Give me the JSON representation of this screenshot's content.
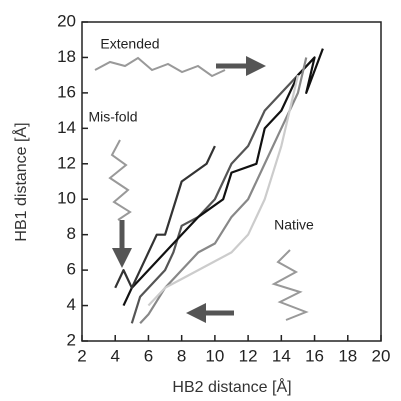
{
  "chart_data": {
    "type": "line",
    "x_label": "HB2 distance [Å]",
    "y_label": "HB1 distance [Å]",
    "annotations": [
      "Extended",
      "Mis-fold",
      "Native"
    ],
    "xlim": [
      2,
      20
    ],
    "ylim": [
      2,
      20
    ],
    "xticks": [
      2,
      4,
      6,
      8,
      10,
      12,
      14,
      16,
      18,
      20
    ],
    "yticks": [
      2,
      4,
      6,
      8,
      10,
      12,
      14,
      16,
      18,
      20
    ],
    "series": [
      {
        "color": "#555555",
        "x": [
          5,
          5.5,
          6,
          7,
          7.5,
          8,
          9,
          10,
          11,
          12,
          12.5,
          13,
          14,
          15,
          16
        ],
        "values": [
          3,
          4.5,
          5,
          6,
          7,
          8.5,
          9,
          10,
          12,
          13,
          14,
          15,
          16,
          17,
          18
        ]
      },
      {
        "color": "#111111",
        "x": [
          4.5,
          5,
          6,
          7,
          8,
          9,
          10.5,
          11,
          12.5,
          13,
          14,
          15,
          16,
          15.5,
          16.5
        ],
        "values": [
          4,
          5,
          6,
          7,
          8,
          9,
          10,
          11.5,
          12,
          14,
          15,
          17,
          18,
          16,
          18.5
        ]
      },
      {
        "color": "#888888",
        "x": [
          5.5,
          6,
          7,
          8,
          9,
          10,
          11,
          12,
          13,
          14,
          15,
          15.5
        ],
        "values": [
          3,
          3.5,
          5,
          6,
          7,
          7.5,
          9,
          10,
          12,
          14,
          16,
          18
        ]
      },
      {
        "color": "#cccccc",
        "x": [
          6,
          7,
          8,
          9,
          10,
          11,
          12,
          13,
          14,
          15
        ],
        "values": [
          4,
          5,
          5.5,
          6,
          6.5,
          7,
          8,
          10,
          13,
          17
        ]
      },
      {
        "color": "#333333",
        "x": [
          4,
          4.5,
          5,
          6,
          6.5,
          7,
          8,
          9.5,
          10
        ],
        "values": [
          5,
          6,
          5,
          7,
          8,
          8,
          11,
          12,
          13
        ]
      }
    ]
  }
}
